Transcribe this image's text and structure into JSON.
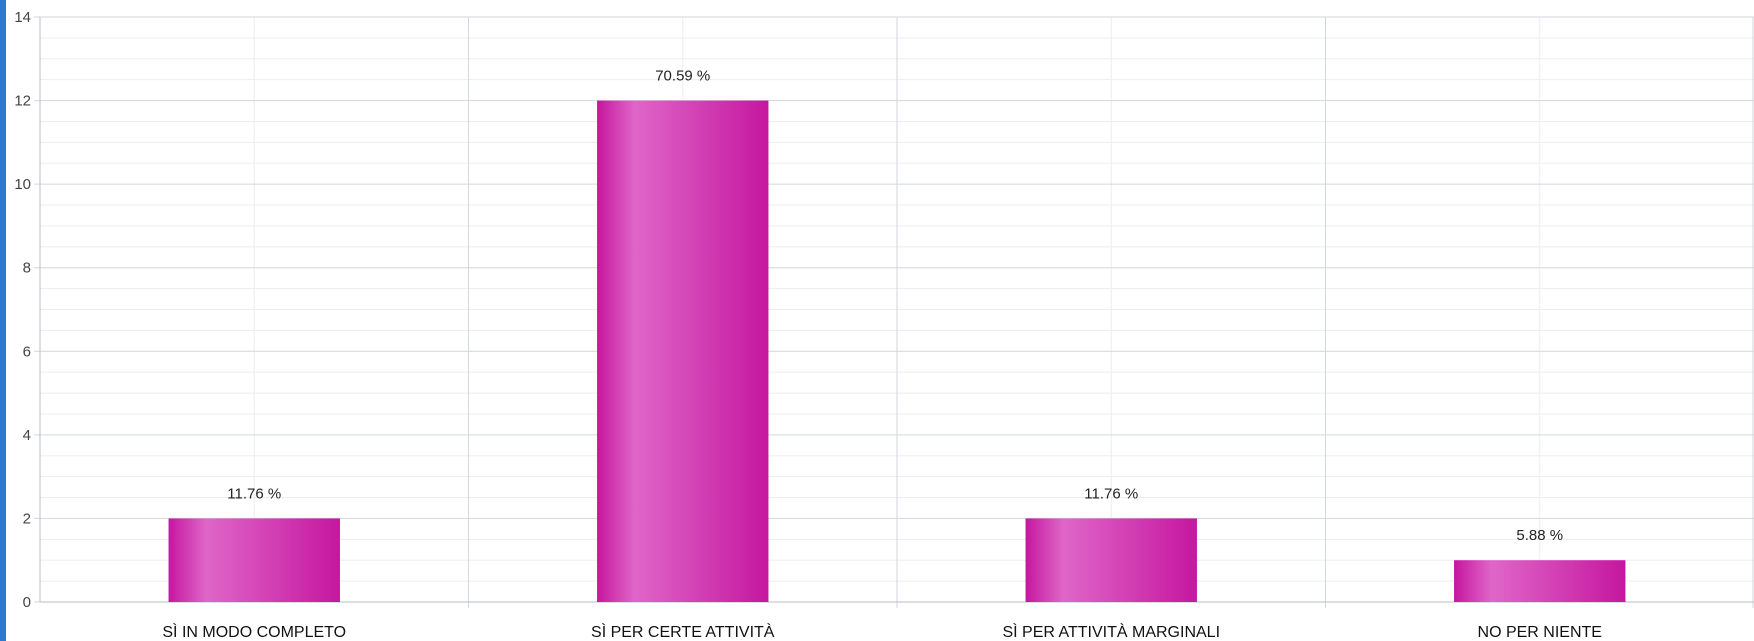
{
  "chart_data": {
    "type": "bar",
    "categories": [
      "SÌ IN MODO COMPLETO",
      "SÌ PER CERTE ATTIVITÀ",
      "SÌ PER ATTIVITÀ MARGINALI",
      "NO PER NIENTE"
    ],
    "values": [
      2,
      12,
      2,
      1
    ],
    "data_labels": [
      "11.76 %",
      "70.59 %",
      "11.76 %",
      "5.88 %"
    ],
    "y_ticks": [
      "0",
      "2",
      "4",
      "6",
      "8",
      "10",
      "12",
      "14"
    ],
    "ylim": [
      0,
      14
    ],
    "grid": true,
    "legend": "none",
    "colors": {
      "bar_edge": "#c5179f",
      "bar_mid": "#df66c8",
      "accent_strip": "#2a7ad2",
      "grid_major": "#d2d6de",
      "grid_minor": "#ecedf1"
    }
  }
}
